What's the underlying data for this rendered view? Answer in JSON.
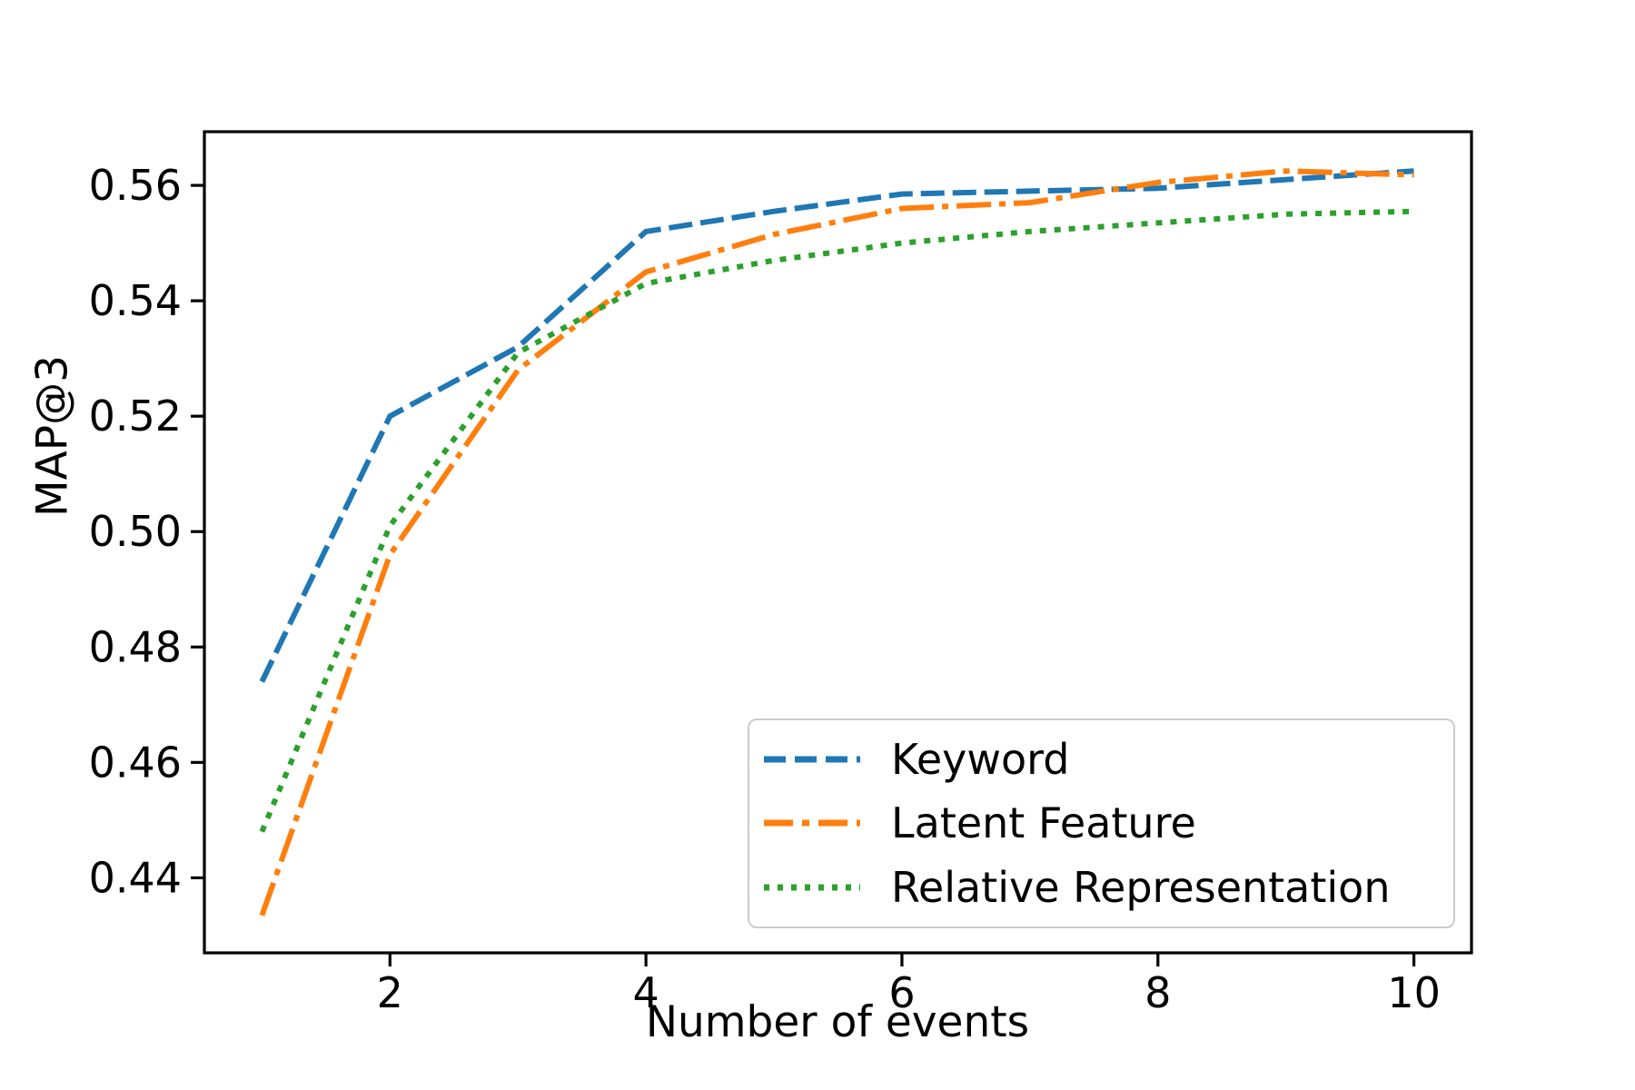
{
  "figure": {
    "background": "#ffffff"
  },
  "chart_data": {
    "type": "line",
    "title": "",
    "xlabel": "Number of events",
    "ylabel": "MAP@3",
    "x": [
      1,
      2,
      3,
      4,
      5,
      6,
      7,
      8,
      9,
      10
    ],
    "series": [
      {
        "name": "Keyword",
        "color": "#1f77b4",
        "linestyle": "dashed",
        "values": [
          0.474,
          0.52,
          0.532,
          0.552,
          0.5555,
          0.5585,
          0.559,
          0.5595,
          0.561,
          0.5625
        ]
      },
      {
        "name": "Latent Feature",
        "color": "#ff7f0e",
        "linestyle": "dashdot",
        "values": [
          0.4335,
          0.496,
          0.528,
          0.545,
          0.5515,
          0.556,
          0.557,
          0.5605,
          0.5625,
          0.5618
        ]
      },
      {
        "name": "Relative Representation",
        "color": "#2ca02c",
        "linestyle": "dotted",
        "values": [
          0.448,
          0.501,
          0.531,
          0.543,
          0.547,
          0.55,
          0.552,
          0.5535,
          0.555,
          0.5555
        ]
      }
    ],
    "xticks": [
      2,
      4,
      6,
      8,
      10
    ],
    "xtick_labels": [
      "2",
      "4",
      "6",
      "8",
      "10"
    ],
    "yticks": [
      0.44,
      0.46,
      0.48,
      0.5,
      0.52,
      0.54,
      0.56
    ],
    "ytick_labels": [
      "0.44",
      "0.46",
      "0.48",
      "0.50",
      "0.52",
      "0.54",
      "0.56"
    ],
    "xlim": [
      0.55,
      10.45
    ],
    "ylim": [
      0.427,
      0.5693
    ],
    "grid": false,
    "legend_position": "lower right",
    "axis_color": "#000000"
  }
}
